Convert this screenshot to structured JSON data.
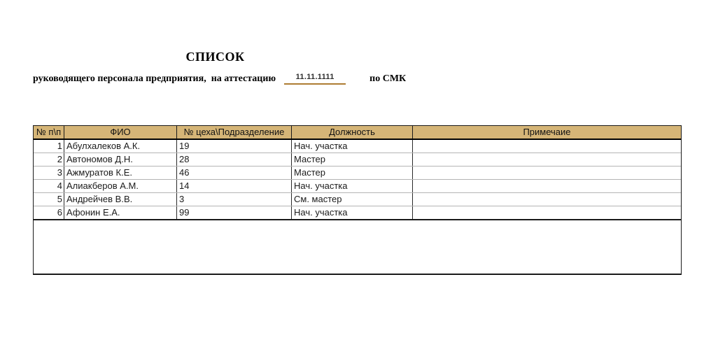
{
  "document": {
    "title": "СПИСОК",
    "subtitle_prefix": "руководящего персонала предприятия,  на аттестацию",
    "attestation_date": "11.11.1111",
    "subtitle_suffix": "по СМК"
  },
  "table": {
    "columns": [
      "№ п\\п",
      "ФИО",
      "№ цеха\\Подразделение",
      "Должность",
      "Примечаие"
    ],
    "rows": [
      {
        "num": "1",
        "fio": "Абулхалеков А.К.",
        "dept": "19",
        "position": "Нач. участка",
        "note": ""
      },
      {
        "num": "2",
        "fio": "Автономов Д.Н.",
        "dept": "28",
        "position": "Мастер",
        "note": ""
      },
      {
        "num": "3",
        "fio": "Ажмуратов К.Е.",
        "dept": "46",
        "position": "Мастер",
        "note": ""
      },
      {
        "num": "4",
        "fio": "Алиакберов А.М.",
        "dept": "14",
        "position": "Нач. участка",
        "note": ""
      },
      {
        "num": "5",
        "fio": "Андрейчев В.В.",
        "dept": "3",
        "position": "См. мастер",
        "note": ""
      },
      {
        "num": "6",
        "fio": "Афонин Е.А.",
        "dept": "99",
        "position": "Нач. участка",
        "note": ""
      }
    ]
  },
  "colors": {
    "header_background": "#d5b577",
    "date_underline": "#ad7d33",
    "row_separator": "#b4b4b4",
    "table_border": "#1a1a1a"
  }
}
